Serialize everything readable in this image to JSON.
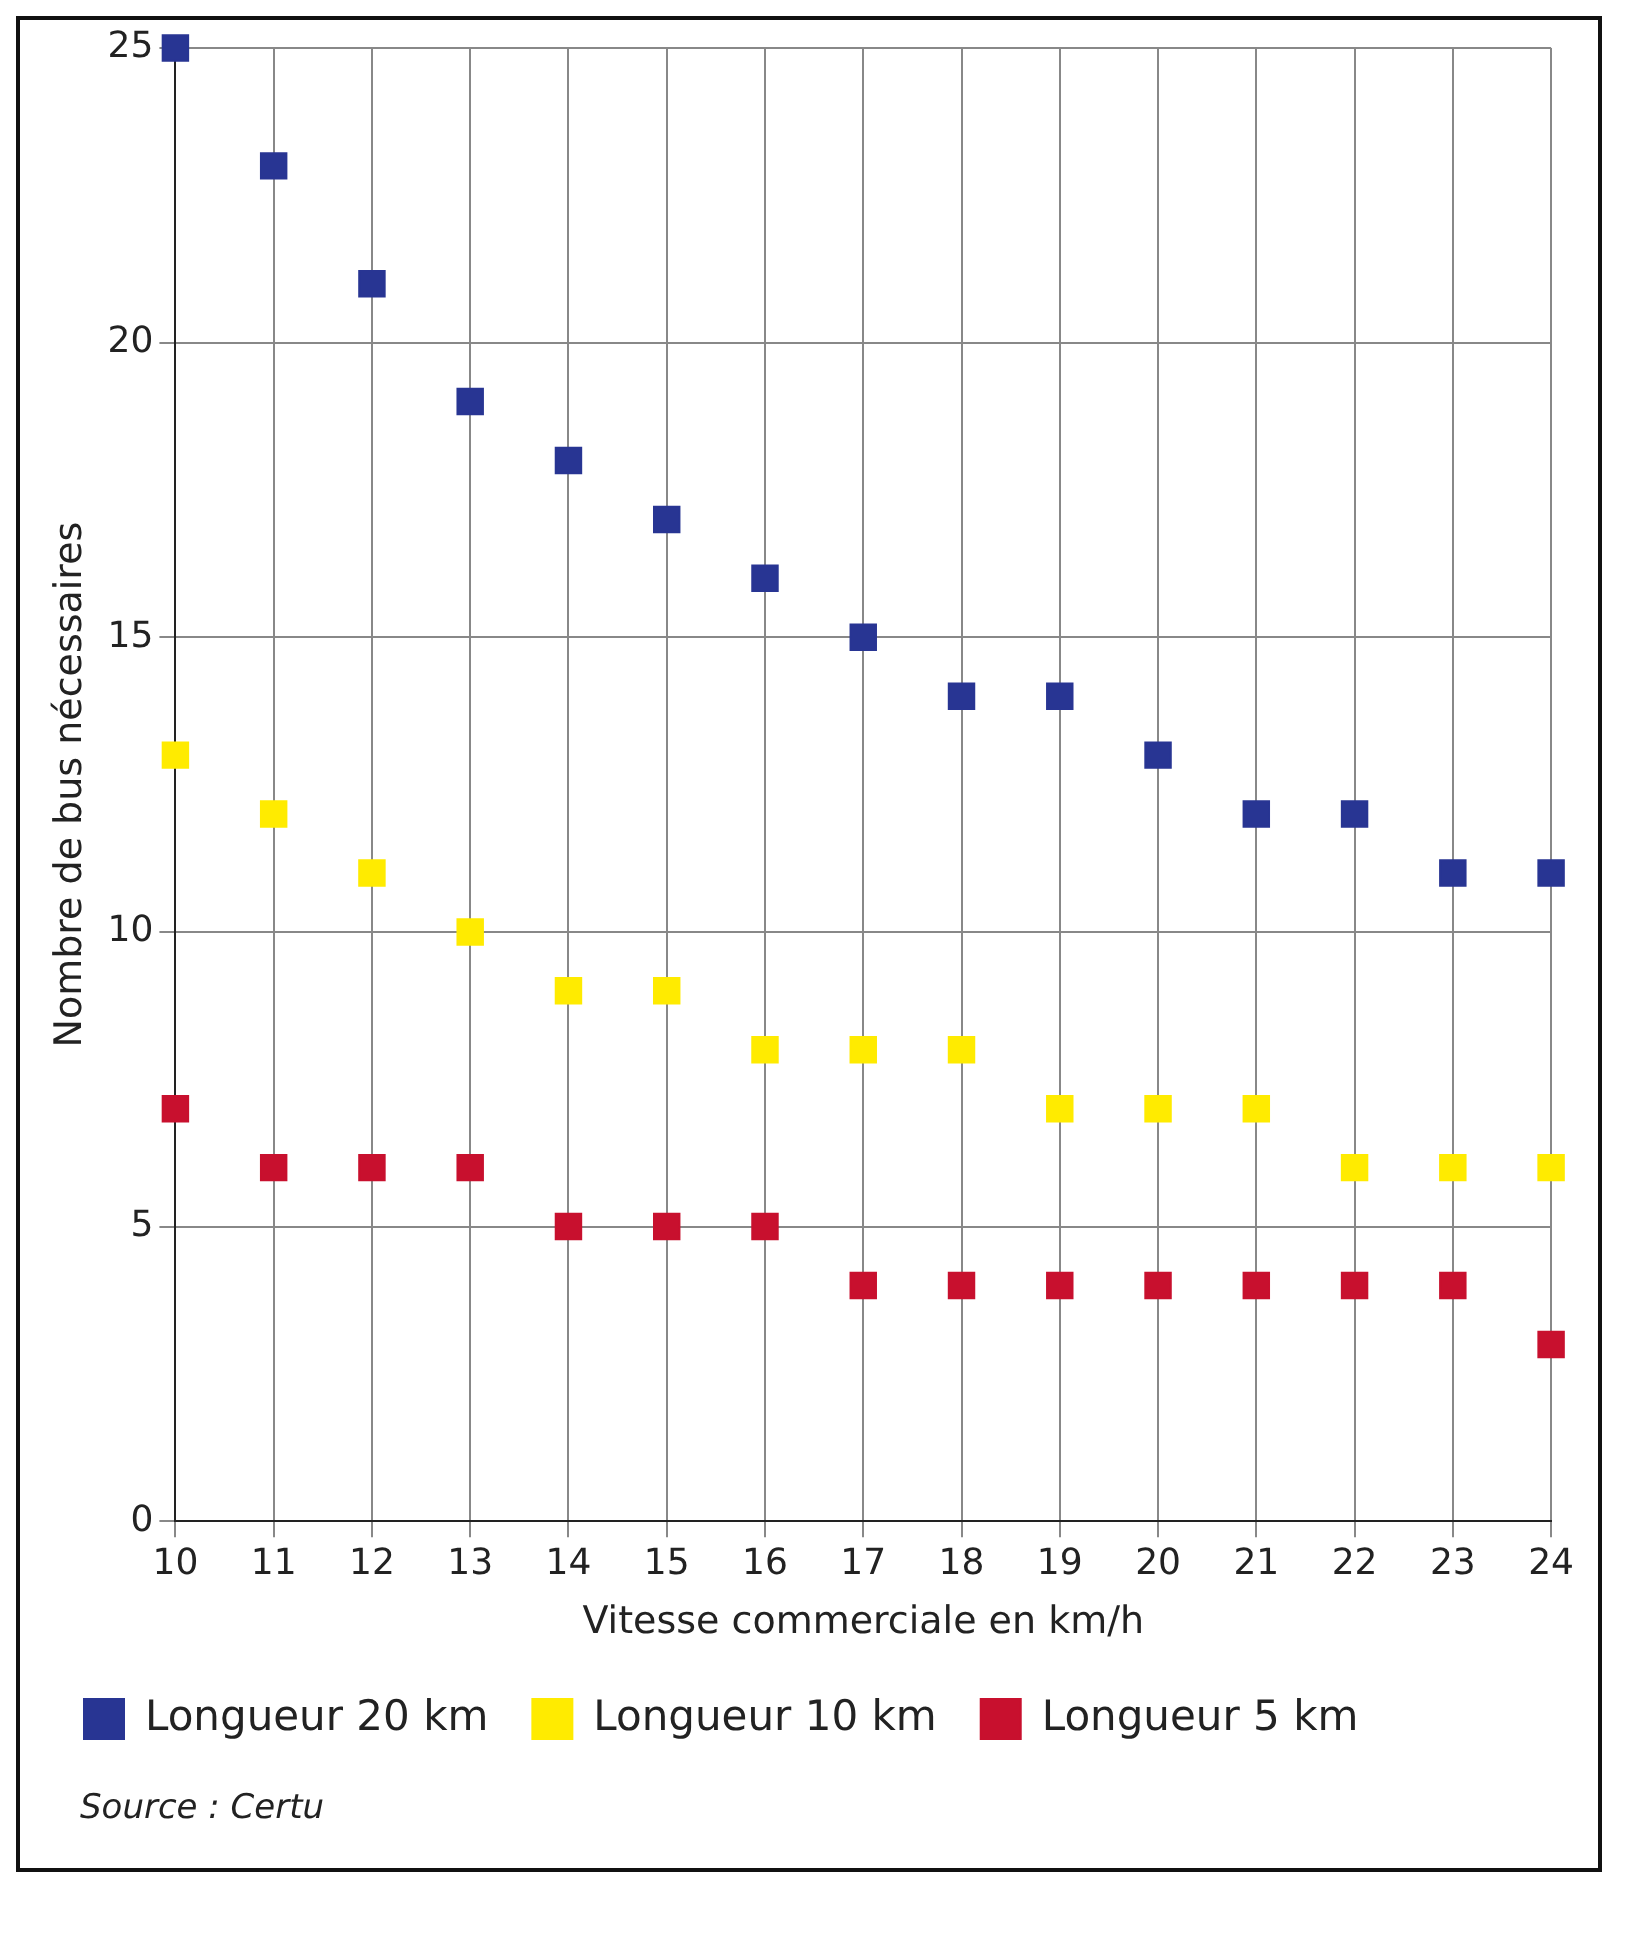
{
  "chart_data": {
    "type": "scatter",
    "xlabel": "Vitesse commerciale en km/h",
    "ylabel": "Nombre de bus nécessaires",
    "x": [
      10,
      11,
      12,
      13,
      14,
      15,
      16,
      17,
      18,
      19,
      20,
      21,
      22,
      23,
      24
    ],
    "series": [
      {
        "name": "Longueur 20 km",
        "color": "#283593",
        "values": [
          25,
          23,
          21,
          19,
          18,
          17,
          16,
          15,
          14,
          14,
          13,
          12,
          12,
          11,
          11
        ]
      },
      {
        "name": "Longueur 10 km",
        "color": "#ffeb00",
        "values": [
          13,
          12,
          11,
          10,
          9,
          9,
          8,
          8,
          8,
          7,
          7,
          7,
          6,
          6,
          6
        ]
      },
      {
        "name": "Longueur 5 km",
        "color": "#c8102e",
        "values": [
          7,
          6,
          6,
          6,
          5,
          5,
          5,
          4,
          4,
          4,
          4,
          4,
          4,
          4,
          3
        ]
      }
    ],
    "xlim": [
      10,
      24
    ],
    "xticks": [
      10,
      11,
      12,
      13,
      14,
      15,
      16,
      17,
      18,
      19,
      20,
      21,
      22,
      23,
      24
    ],
    "ylim": [
      0,
      25
    ],
    "yticks": [
      0,
      5,
      10,
      15,
      20,
      25
    ],
    "grid": true,
    "legend": "bottom left",
    "marker": "square",
    "annotations": [
      "Source : Certu"
    ]
  }
}
